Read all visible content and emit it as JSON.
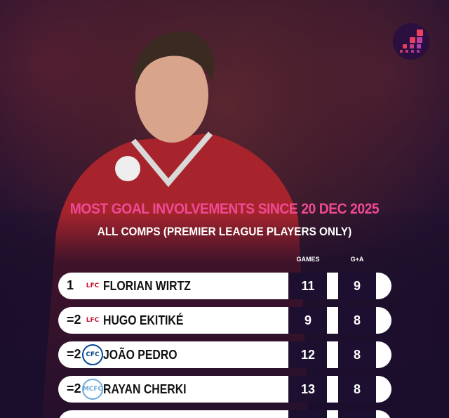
{
  "title": "MOST GOAL INVOLVEMENTS SINCE 20 DEC 2025",
  "subtitle": "ALL COMPS (PREMIER LEAGUE PLAYERS ONLY)",
  "columns": {
    "games": "GAMES",
    "ga": "G+A"
  },
  "colors": {
    "title": "#ee4a94",
    "liverpool": "#c8102e",
    "chelsea": "#034694",
    "mancity": "#6cabdd"
  },
  "rows": [
    {
      "rank": "1",
      "club": "liverpool",
      "badge": "LFC",
      "name": "FLORIAN WIRTZ",
      "games": "11",
      "ga": "9"
    },
    {
      "rank": "=2",
      "club": "liverpool",
      "badge": "LFC",
      "name": "HUGO EKITIKÉ",
      "games": "9",
      "ga": "8"
    },
    {
      "rank": "=2",
      "club": "chelsea",
      "badge": "CFC",
      "name": "JOÃO PEDRO",
      "games": "12",
      "ga": "8"
    },
    {
      "rank": "=2",
      "club": "mancity",
      "badge": "MCFC",
      "name": "RAYAN CHERKI",
      "games": "13",
      "ga": "8"
    }
  ]
}
